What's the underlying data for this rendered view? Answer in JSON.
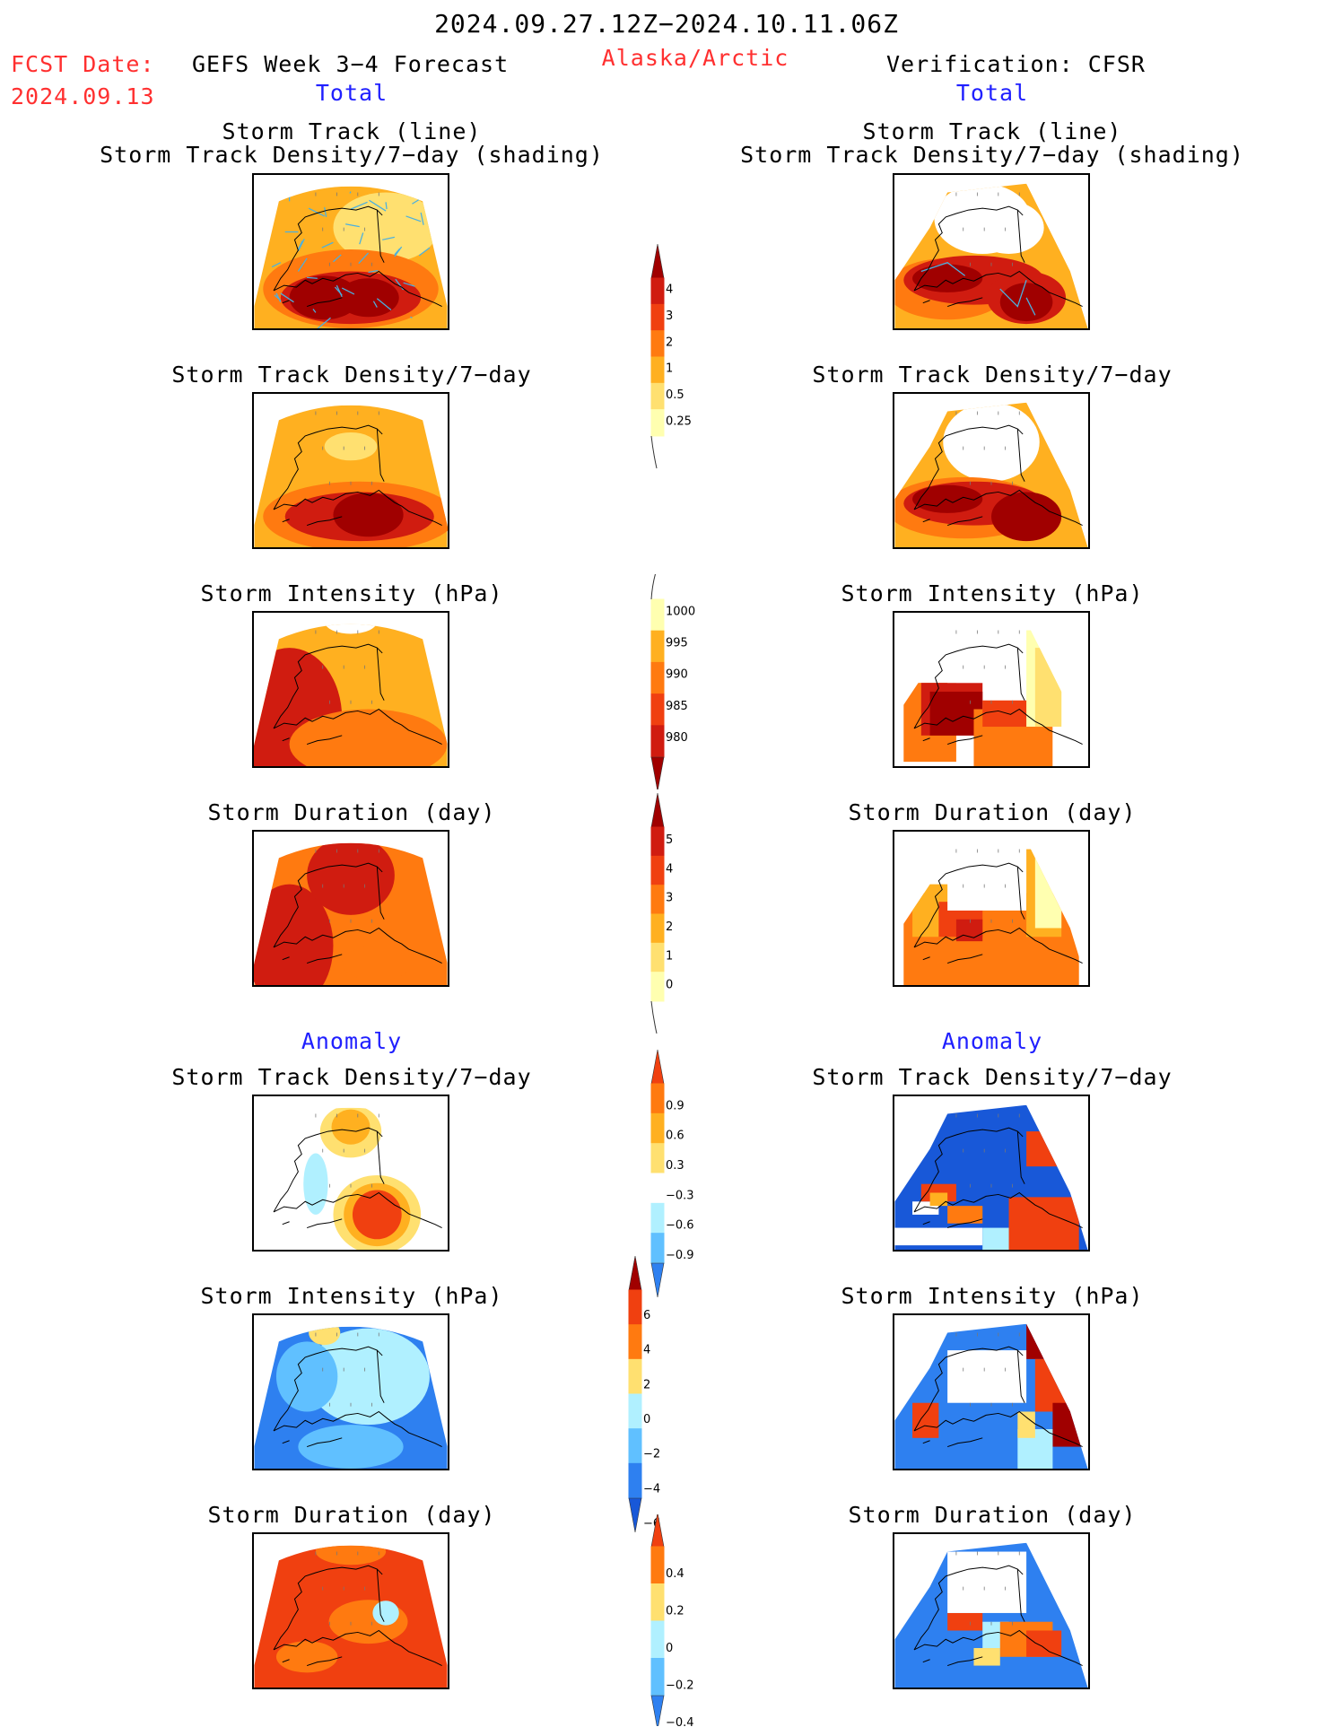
{
  "header": {
    "period": "2024.09.27.12Z−2024.10.11.06Z",
    "fcst_label": "FCST Date:",
    "fcst_date": "2024.09.13",
    "forecast_title": "GEFS Week 3−4 Forecast",
    "region": "Alaska/Arctic",
    "verification": "Verification: CFSR",
    "total_left": "Total",
    "total_right": "Total",
    "anomaly_left": "Anomaly",
    "anomaly_right": "Anomaly"
  },
  "panel_titles": {
    "track_line": "Storm Track (line)",
    "track_shading": "Storm Track Density/7−day (shading)",
    "density": "Storm Track Density/7−day",
    "intensity": "Storm Intensity (hPa)",
    "duration": "Storm Duration (day)"
  },
  "colors": {
    "yellow_light": "#ffffb0",
    "yellow": "#ffe070",
    "orange_light": "#ffb020",
    "orange": "#ff7a10",
    "red_orange": "#f04010",
    "red": "#d01c10",
    "dark_red": "#a00000",
    "light_blue": "#b0f0ff",
    "sky_blue": "#60c0ff",
    "blue": "#2e80f0",
    "dark_blue": "#1858d8",
    "track_line": "#4ab0e0"
  },
  "chart_data": [
    {
      "type": "heatmap",
      "id": "colorbar-density",
      "ticks": [
        "4",
        "3",
        "2",
        "1",
        "0.5",
        "0.25"
      ],
      "colors": [
        "#a00000",
        "#d01c10",
        "#f04010",
        "#ff7a10",
        "#ffb020",
        "#ffe070",
        "#ffffb0"
      ]
    },
    {
      "type": "heatmap",
      "id": "colorbar-intensity",
      "ticks": [
        "1000",
        "995",
        "990",
        "985",
        "980"
      ],
      "colors": [
        "#ffffb0",
        "#ffb020",
        "#ff7a10",
        "#f04010",
        "#d01c10",
        "#a00000"
      ]
    },
    {
      "type": "heatmap",
      "id": "colorbar-duration",
      "ticks": [
        "5",
        "4",
        "3",
        "2",
        "1",
        "0"
      ],
      "colors": [
        "#a00000",
        "#d01c10",
        "#f04010",
        "#ff7a10",
        "#ffb020",
        "#ffe070",
        "#ffffb0"
      ]
    },
    {
      "type": "heatmap",
      "id": "colorbar-density-anom",
      "ticks": [
        "0.9",
        "0.6",
        "0.3",
        "−0.3",
        "−0.6",
        "−0.9"
      ],
      "colors": [
        "#f04010",
        "#ff7a10",
        "#ffb020",
        "#ffe070",
        "#ffffff",
        "#b0f0ff",
        "#60c0ff",
        "#2e80f0"
      ]
    },
    {
      "type": "heatmap",
      "id": "colorbar-intensity-anom",
      "ticks": [
        "6",
        "4",
        "2",
        "0",
        "−2",
        "−4",
        "−6"
      ],
      "colors": [
        "#a00000",
        "#f04010",
        "#ff7a10",
        "#ffe070",
        "#b0f0ff",
        "#60c0ff",
        "#2e80f0",
        "#1858d8"
      ]
    },
    {
      "type": "heatmap",
      "id": "colorbar-duration-anom",
      "ticks": [
        "0.4",
        "0.2",
        "0",
        "−0.2",
        "−0.4"
      ],
      "colors": [
        "#f04010",
        "#ff7a10",
        "#ffe070",
        "#b0f0ff",
        "#60c0ff",
        "#2e80f0"
      ]
    }
  ]
}
